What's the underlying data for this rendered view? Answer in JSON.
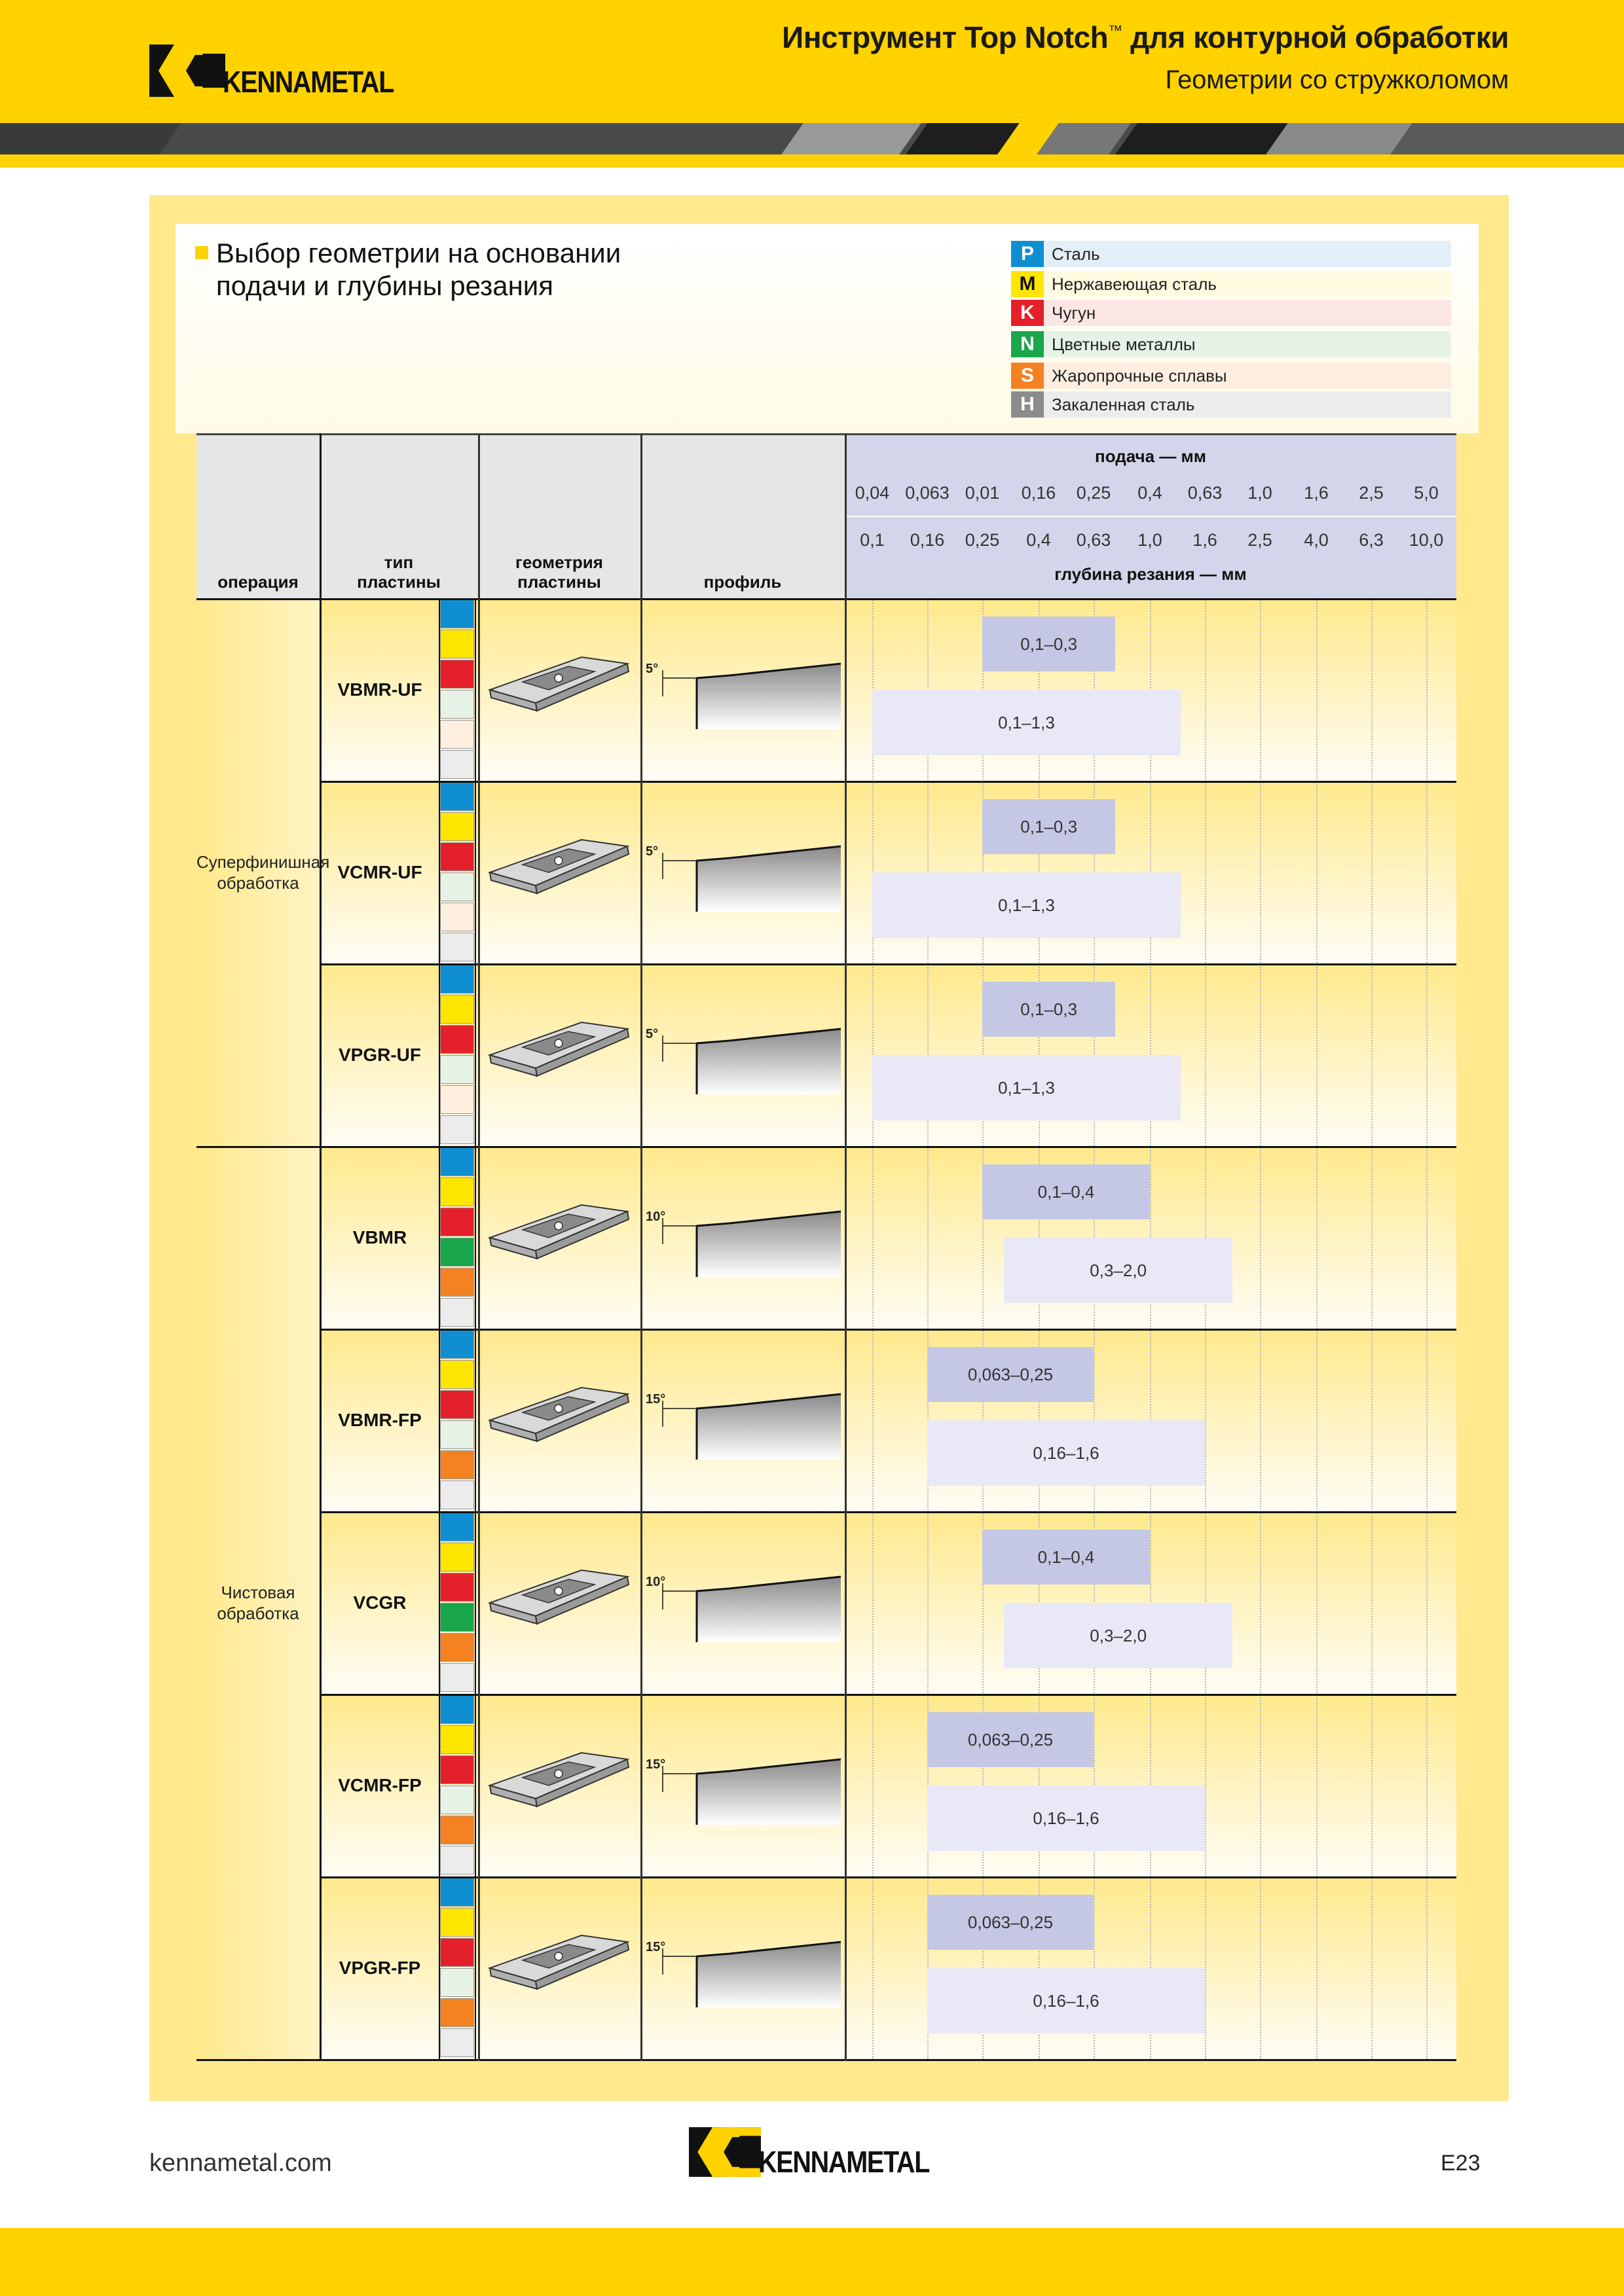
{
  "header": {
    "title": "Инструмент Top Notch",
    "trademark": "™",
    "title_rest": " для контурной обработки",
    "subtitle": "Геометрии со стружколомом",
    "logo": "KENNAMETAL"
  },
  "section": {
    "title_line1": "Выбор геометрии на основании",
    "title_line2": "подачи и глубины резания"
  },
  "legend": [
    {
      "code": "P",
      "label": "Сталь",
      "color": "#0f8fd2",
      "bg": "#e2eef8"
    },
    {
      "code": "M",
      "label": "Нержавеющая сталь",
      "color": "#ffe600",
      "bg": "#fffbe0"
    },
    {
      "code": "K",
      "label": "Чугун",
      "color": "#e4202a",
      "bg": "#fbe6e3"
    },
    {
      "code": "N",
      "label": "Цветные металлы",
      "color": "#1aa64a",
      "bg": "#e6f2e6"
    },
    {
      "code": "S",
      "label": "Жаропрочные сплавы",
      "color": "#f58220",
      "bg": "#fdeee0"
    },
    {
      "code": "H",
      "label": "Закаленная сталь",
      "color": "#8c8c8c",
      "bg": "#ececec"
    }
  ],
  "table": {
    "headers": {
      "operation": "операция",
      "insert_type_1": "тип",
      "insert_type_2": "пластины",
      "geometry_1": "геометрия",
      "geometry_2": "пластины",
      "profile": "профиль",
      "feed": "подача — мм",
      "depth": "глубина резания — мм"
    },
    "feed_ticks": [
      "0,04",
      "0,063",
      "0,01",
      "0,16",
      "0,25",
      "0,4",
      "0,63",
      "1,0",
      "1,6",
      "2,5",
      "5,0"
    ],
    "depth_ticks": [
      "0,1",
      "0,16",
      "0,25",
      "0,4",
      "0,63",
      "1,0",
      "1,6",
      "2,5",
      "4,0",
      "6,3",
      "10,0"
    ],
    "groups": [
      {
        "label_1": "Суперфинишная",
        "label_2": "обработка",
        "rows": [
          0,
          2
        ]
      },
      {
        "label_1": "Чистовая",
        "label_2": "обработка",
        "rows": [
          3,
          7
        ]
      }
    ],
    "rows": [
      {
        "type": "VBMR-UF",
        "angle": "5°",
        "materials": [
          "P",
          "M",
          "K",
          "N0",
          "S0",
          "H0"
        ],
        "feed": {
          "label": "0,1–0,3",
          "from": 0.1,
          "to": 0.3
        },
        "depth": {
          "label": "0,1–1,3",
          "from": 0.1,
          "to": 1.3
        }
      },
      {
        "type": "VCMR-UF",
        "angle": "5°",
        "materials": [
          "P",
          "M",
          "K",
          "N0",
          "S0",
          "H0"
        ],
        "feed": {
          "label": "0,1–0,3",
          "from": 0.1,
          "to": 0.3
        },
        "depth": {
          "label": "0,1–1,3",
          "from": 0.1,
          "to": 1.3
        }
      },
      {
        "type": "VPGR-UF",
        "angle": "5°",
        "materials": [
          "P",
          "M",
          "K",
          "N0",
          "S0",
          "H0"
        ],
        "feed": {
          "label": "0,1–0,3",
          "from": 0.1,
          "to": 0.3
        },
        "depth": {
          "label": "0,1–1,3",
          "from": 0.1,
          "to": 1.3
        }
      },
      {
        "type": "VBMR",
        "angle": "10°",
        "materials": [
          "P",
          "M",
          "K",
          "N",
          "S",
          "H0"
        ],
        "feed": {
          "label": "0,1–0,4",
          "from": 0.1,
          "to": 0.4
        },
        "depth": {
          "label": "0,3–2,0",
          "from": 0.3,
          "to": 2.0
        }
      },
      {
        "type": "VBMR-FP",
        "angle": "15°",
        "materials": [
          "P",
          "M",
          "K",
          "N0",
          "S",
          "H0"
        ],
        "feed": {
          "label": "0,063–0,25",
          "from": 0.063,
          "to": 0.25
        },
        "depth": {
          "label": "0,16–1,6",
          "from": 0.16,
          "to": 1.6
        }
      },
      {
        "type": "VCGR",
        "angle": "10°",
        "materials": [
          "P",
          "M",
          "K",
          "N",
          "S",
          "H0"
        ],
        "feed": {
          "label": "0,1–0,4",
          "from": 0.1,
          "to": 0.4
        },
        "depth": {
          "label": "0,3–2,0",
          "from": 0.3,
          "to": 2.0
        }
      },
      {
        "type": "VCMR-FP",
        "angle": "15°",
        "materials": [
          "P",
          "M",
          "K",
          "N0",
          "S",
          "H0"
        ],
        "feed": {
          "label": "0,063–0,25",
          "from": 0.063,
          "to": 0.25
        },
        "depth": {
          "label": "0,16–1,6",
          "from": 0.16,
          "to": 1.6
        }
      },
      {
        "type": "VPGR-FP",
        "angle": "15°",
        "materials": [
          "P",
          "M",
          "K",
          "N0",
          "S",
          "H0"
        ],
        "feed": {
          "label": "0,063–0,25",
          "from": 0.063,
          "to": 0.25
        },
        "depth": {
          "label": "0,16–1,6",
          "from": 0.16,
          "to": 1.6
        }
      }
    ]
  },
  "footer": {
    "url": "kennametal.com",
    "logo": "KENNAMETAL",
    "page": "E23"
  }
}
